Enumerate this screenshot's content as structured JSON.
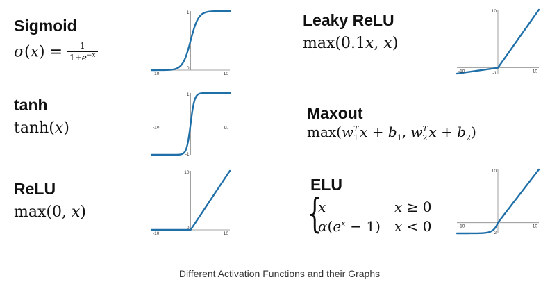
{
  "caption": "Different Activation Functions and their Graphs",
  "colors": {
    "curve": "#1f6fa8",
    "axis": "#888888"
  },
  "functions": [
    {
      "id": "sigmoid",
      "name": "Sigmoid",
      "formula": {
        "lhs": "σ(x) =",
        "num": "1",
        "den": "1+e",
        "den_exp": "−x"
      },
      "graph": {
        "xlim": [
          -10,
          10
        ],
        "ylim": [
          0,
          1
        ],
        "ticks": {
          "x_left": "-10",
          "x_right": "10",
          "y_top": "1",
          "y_origin": "0"
        }
      }
    },
    {
      "id": "tanh",
      "name": "tanh",
      "formula": {
        "text": "tanh(x)"
      },
      "graph": {
        "xlim": [
          -10,
          10
        ],
        "ylim": [
          -1,
          1
        ],
        "ticks": {
          "x_left": "-10",
          "x_right": "10",
          "y_top": "1",
          "y_bottom": "-1"
        }
      }
    },
    {
      "id": "relu",
      "name": "ReLU",
      "formula": {
        "text": "max(0, x)"
      },
      "graph": {
        "xlim": [
          -10,
          10
        ],
        "ylim": [
          0,
          10
        ],
        "ticks": {
          "x_left": "-10",
          "x_right": "10",
          "y_top": "10",
          "y_origin": "0"
        }
      }
    },
    {
      "id": "leaky_relu",
      "name": "Leaky ReLU",
      "formula": {
        "text": "max(0.1x, x)"
      },
      "graph": {
        "xlim": [
          -10,
          10
        ],
        "ylim": [
          -1,
          10
        ],
        "ticks": {
          "x_left": "-10",
          "x_right": "10",
          "y_top": "10",
          "y_bottom": "-1"
        }
      }
    },
    {
      "id": "maxout",
      "name": "Maxout",
      "formula": {
        "text": "max(w1T x + b1, w2T x + b2)"
      }
    },
    {
      "id": "elu",
      "name": "ELU",
      "formula": {
        "case1_expr": "x",
        "case1_cond": "x ≥ 0",
        "case2_expr": "α(e",
        "case2_exp": "x",
        "case2_tail": " − 1)",
        "case2_cond": "x < 0"
      },
      "graph": {
        "xlim": [
          -10,
          10
        ],
        "ylim": [
          -2,
          10
        ],
        "ticks": {
          "x_left": "-10",
          "x_right": "10",
          "y_top": "10",
          "y_bottom": "-2"
        }
      }
    }
  ]
}
